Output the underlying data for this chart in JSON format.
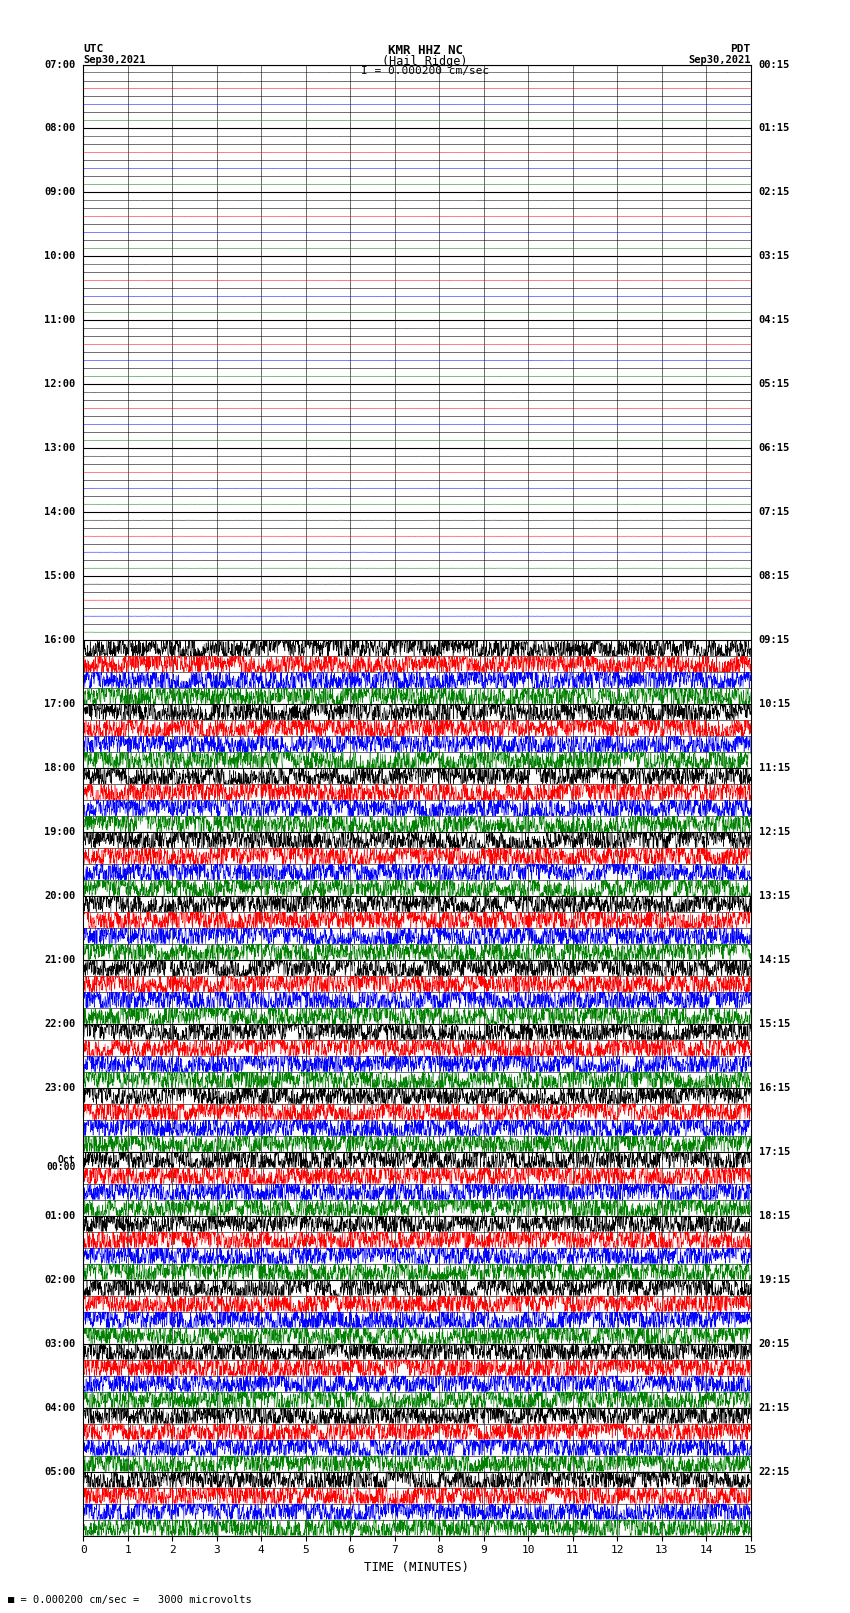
{
  "title_line1": "KMR HHZ NC",
  "title_line2": "(Hail Ridge)",
  "scale_label": "I = 0.000200 cm/sec",
  "left_label": "UTC",
  "left_date": "Sep30,2021",
  "right_label": "PDT",
  "right_date": "Sep30,2021",
  "xlabel": "TIME (MINUTES)",
  "bottom_note": "= 0.000200 cm/sec =   3000 microvolts",
  "utc_times": [
    "07:00",
    "",
    "",
    "",
    "08:00",
    "",
    "",
    "",
    "09:00",
    "",
    "",
    "",
    "10:00",
    "",
    "",
    "",
    "11:00",
    "",
    "",
    "",
    "12:00",
    "",
    "",
    "",
    "13:00",
    "",
    "",
    "",
    "14:00",
    "",
    "",
    "",
    "15:00",
    "",
    "",
    "",
    "16:00",
    "",
    "",
    "",
    "17:00",
    "",
    "",
    "",
    "18:00",
    "",
    "",
    "",
    "19:00",
    "",
    "",
    "",
    "20:00",
    "",
    "",
    "",
    "21:00",
    "",
    "",
    "",
    "22:00",
    "",
    "",
    "",
    "23:00",
    "",
    "",
    "",
    "Oct\n00:00",
    "",
    "",
    "",
    "01:00",
    "",
    "",
    "",
    "02:00",
    "",
    "",
    "",
    "03:00",
    "",
    "",
    "",
    "04:00",
    "",
    "",
    "",
    "05:00",
    "",
    "",
    ""
  ],
  "pdt_times": [
    "00:15",
    "",
    "",
    "",
    "01:15",
    "",
    "",
    "",
    "02:15",
    "",
    "",
    "",
    "03:15",
    "",
    "",
    "",
    "04:15",
    "",
    "",
    "",
    "05:15",
    "",
    "",
    "",
    "06:15",
    "",
    "",
    "",
    "07:15",
    "",
    "",
    "",
    "08:15",
    "",
    "",
    "",
    "09:15",
    "",
    "",
    "",
    "10:15",
    "",
    "",
    "",
    "11:15",
    "",
    "",
    "",
    "12:15",
    "",
    "",
    "",
    "13:15",
    "",
    "",
    "",
    "14:15",
    "",
    "",
    "",
    "15:15",
    "",
    "",
    "",
    "16:15",
    "",
    "",
    "",
    "17:15",
    "",
    "",
    "",
    "18:15",
    "",
    "",
    "",
    "19:15",
    "",
    "",
    "",
    "20:15",
    "",
    "",
    "",
    "21:15",
    "",
    "",
    "",
    "22:15",
    "",
    "",
    ""
  ],
  "n_rows": 92,
  "n_quiet_rows": 36,
  "colors_cycle": [
    "black",
    "red",
    "blue",
    "green"
  ],
  "quiet_amplitude": 0.008,
  "active_amplitude": 0.42,
  "noise_seed": 42,
  "background_color": "white",
  "grid_color": "#000000",
  "fig_width": 8.5,
  "fig_height": 16.13,
  "dpi": 100
}
